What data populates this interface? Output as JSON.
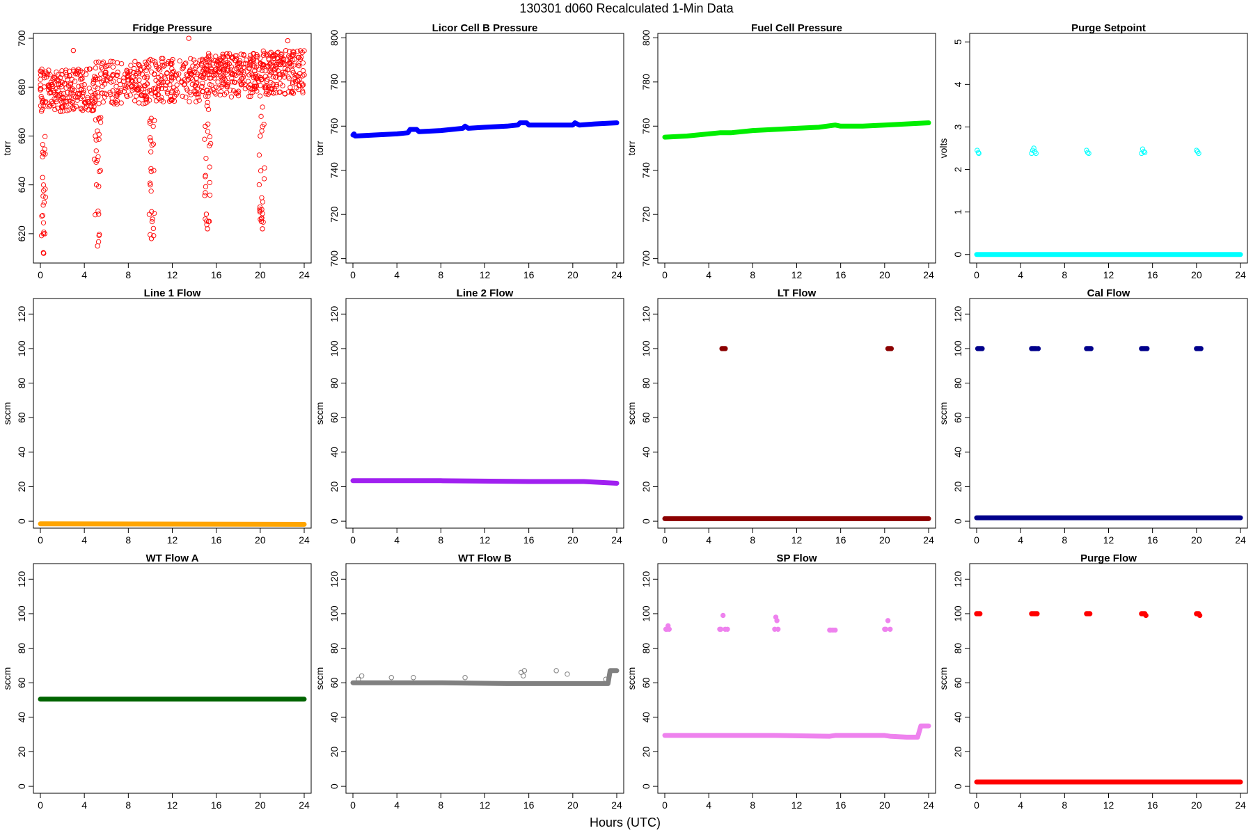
{
  "figure": {
    "title": "130301   d060   Recalculated 1-Min Data",
    "xlabel": "Hours (UTC)"
  },
  "chart_data": [
    {
      "type": "scatter",
      "title": "Fridge Pressure",
      "ylabel": "torr",
      "color": "#ff0000",
      "marker": "open-circle",
      "xlim": [
        0,
        24
      ],
      "xticks": [
        0,
        4,
        8,
        12,
        16,
        20,
        24
      ],
      "ylim": [
        608,
        702
      ],
      "yticks": [
        620,
        640,
        660,
        680,
        700
      ],
      "pattern": "noisy baseline around 678-686 torr with dips to ~612-625 torr near hours 0, 5, 10, 15, 20",
      "series": [
        {
          "x": [
            0.2,
            0.3,
            0.4,
            1,
            2,
            3,
            4,
            5,
            5.1,
            5.2,
            5.3,
            6,
            7,
            8,
            9,
            10,
            10.1,
            10.2,
            11,
            12,
            13,
            13.5,
            14,
            15,
            15.1,
            15.2,
            15.3,
            16,
            17,
            18,
            19,
            20,
            20.1,
            20.2,
            21,
            22,
            22.5,
            23,
            24
          ],
          "y": [
            643,
            612,
            620,
            681,
            682,
            695,
            681,
            660,
            640,
            615,
            628,
            683,
            690,
            683,
            681,
            640,
            618,
            626,
            682,
            686,
            688,
            700,
            686,
            664,
            628,
            622,
            625,
            685,
            687,
            686,
            685,
            660,
            625,
            622,
            686,
            685,
            699,
            686,
            685
          ]
        }
      ]
    },
    {
      "type": "scatter",
      "title": "Licor Cell B Pressure",
      "ylabel": "torr",
      "color": "#0000ff",
      "marker": "filled-band",
      "xlim": [
        0,
        24
      ],
      "xticks": [
        0,
        4,
        8,
        12,
        16,
        20,
        24
      ],
      "ylim": [
        698,
        802
      ],
      "yticks": [
        700,
        720,
        740,
        760,
        780,
        800
      ],
      "series": [
        {
          "x": [
            0,
            0.1,
            0.2,
            2,
            4,
            5,
            5.2,
            5.8,
            6,
            8,
            10,
            10.2,
            10.5,
            12,
            14,
            15,
            15.2,
            15.8,
            16,
            18,
            20,
            20.2,
            20.6,
            22,
            24
          ],
          "y": [
            756,
            756.5,
            755.5,
            756,
            756.5,
            757,
            758.5,
            758.5,
            757.5,
            758,
            759,
            760,
            759,
            759.5,
            760,
            760.5,
            761.5,
            761.5,
            760.5,
            760.5,
            760.5,
            761.5,
            760.5,
            761,
            761.5
          ]
        }
      ]
    },
    {
      "type": "scatter",
      "title": "Fuel Cell Pressure",
      "ylabel": "torr",
      "color": "#00ee00",
      "marker": "filled-band",
      "xlim": [
        0,
        24
      ],
      "xticks": [
        0,
        4,
        8,
        12,
        16,
        20,
        24
      ],
      "ylim": [
        698,
        802
      ],
      "yticks": [
        700,
        720,
        740,
        760,
        780,
        800
      ],
      "series": [
        {
          "x": [
            0,
            2,
            4,
            5,
            6,
            8,
            10,
            12,
            14,
            15.5,
            16,
            18,
            20,
            22,
            24
          ],
          "y": [
            755,
            755.5,
            756.5,
            757,
            757,
            758,
            758.5,
            759,
            759.5,
            760.5,
            760,
            760,
            760.5,
            761,
            761.5
          ]
        }
      ]
    },
    {
      "type": "scatter",
      "title": "Purge Setpoint",
      "ylabel": "volts",
      "color": "#00ffff",
      "marker": "open-circle",
      "xlim": [
        0,
        24
      ],
      "xticks": [
        0,
        4,
        8,
        12,
        16,
        20,
        24
      ],
      "ylim": [
        -0.2,
        5.2
      ],
      "yticks": [
        0,
        1,
        2,
        3,
        4,
        5
      ],
      "baseline": 0,
      "spikes": [
        {
          "x": [
            0.05,
            0.15,
            0.2
          ],
          "y": [
            2.45,
            2.4,
            2.38
          ]
        },
        {
          "x": [
            5.0,
            5.1,
            5.2,
            5.3,
            5.4
          ],
          "y": [
            2.38,
            2.45,
            2.5,
            2.42,
            2.38
          ]
        },
        {
          "x": [
            10.0,
            10.1,
            10.2
          ],
          "y": [
            2.45,
            2.4,
            2.38
          ]
        },
        {
          "x": [
            15.0,
            15.1,
            15.2,
            15.3
          ],
          "y": [
            2.38,
            2.48,
            2.42,
            2.4
          ]
        },
        {
          "x": [
            20.0,
            20.1,
            20.2
          ],
          "y": [
            2.45,
            2.42,
            2.38
          ]
        }
      ]
    },
    {
      "type": "scatter",
      "title": "Line 1 Flow",
      "ylabel": "sccm",
      "color": "#ffa500",
      "marker": "filled-band",
      "xlim": [
        0,
        24
      ],
      "xticks": [
        0,
        4,
        8,
        12,
        16,
        20,
        24
      ],
      "ylim": [
        -4,
        129
      ],
      "yticks": [
        0,
        20,
        40,
        60,
        80,
        100,
        120
      ],
      "series": [
        {
          "x": [
            0,
            24
          ],
          "y": [
            -1.5,
            -1.8
          ]
        }
      ]
    },
    {
      "type": "scatter",
      "title": "Line 2 Flow",
      "ylabel": "sccm",
      "color": "#a020f0",
      "marker": "filled-band",
      "xlim": [
        0,
        24
      ],
      "xticks": [
        0,
        4,
        8,
        12,
        16,
        20,
        24
      ],
      "ylim": [
        -4,
        129
      ],
      "yticks": [
        0,
        20,
        40,
        60,
        80,
        100,
        120
      ],
      "series": [
        {
          "x": [
            0,
            8,
            16,
            21,
            24
          ],
          "y": [
            23.5,
            23.5,
            23,
            23,
            22
          ]
        }
      ]
    },
    {
      "type": "scatter",
      "title": "LT Flow",
      "ylabel": "sccm",
      "color": "#8b0000",
      "marker": "filled-band",
      "xlim": [
        0,
        24
      ],
      "xticks": [
        0,
        4,
        8,
        12,
        16,
        20,
        24
      ],
      "ylim": [
        -4,
        129
      ],
      "yticks": [
        0,
        20,
        40,
        60,
        80,
        100,
        120
      ],
      "baseline": 1.5,
      "spikes": [
        {
          "x": [
            5.2,
            5.3,
            5.4,
            5.5
          ],
          "y": [
            100,
            100,
            100,
            100
          ]
        },
        {
          "x": [
            20.3,
            20.4,
            20.5,
            20.6
          ],
          "y": [
            100,
            100,
            100,
            100
          ]
        }
      ]
    },
    {
      "type": "scatter",
      "title": "Cal Flow",
      "ylabel": "sccm",
      "color": "#00008b",
      "marker": "filled-band",
      "xlim": [
        0,
        24
      ],
      "xticks": [
        0,
        4,
        8,
        12,
        16,
        20,
        24
      ],
      "ylim": [
        -4,
        129
      ],
      "yticks": [
        0,
        20,
        40,
        60,
        80,
        100,
        120
      ],
      "baseline": 2,
      "spikes": [
        {
          "x": [
            0.1,
            0.2,
            0.3,
            0.4,
            0.5
          ],
          "y": [
            100,
            100,
            100,
            100,
            100
          ]
        },
        {
          "x": [
            5.0,
            5.1,
            5.2,
            5.3,
            5.4,
            5.6
          ],
          "y": [
            100,
            100,
            100,
            100,
            100,
            100
          ]
        },
        {
          "x": [
            10.0,
            10.1,
            10.2,
            10.3,
            10.4
          ],
          "y": [
            100,
            100,
            100,
            100,
            100
          ]
        },
        {
          "x": [
            15.0,
            15.1,
            15.2,
            15.3,
            15.4,
            15.5
          ],
          "y": [
            100,
            100,
            100,
            100,
            100,
            100
          ]
        },
        {
          "x": [
            20.0,
            20.1,
            20.2,
            20.3,
            20.4
          ],
          "y": [
            100,
            100,
            100,
            100,
            100
          ]
        }
      ]
    },
    {
      "type": "scatter",
      "title": "WT Flow A",
      "ylabel": "sccm",
      "color": "#006400",
      "marker": "filled-band",
      "xlim": [
        0,
        24
      ],
      "xticks": [
        0,
        4,
        8,
        12,
        16,
        20,
        24
      ],
      "ylim": [
        -4,
        129
      ],
      "yticks": [
        0,
        20,
        40,
        60,
        80,
        100,
        120
      ],
      "series": [
        {
          "x": [
            0,
            24
          ],
          "y": [
            50.5,
            50.5
          ]
        }
      ]
    },
    {
      "type": "scatter",
      "title": "WT Flow B",
      "ylabel": "sccm",
      "color": "#808080",
      "marker": "filled-band",
      "xlim": [
        0,
        24
      ],
      "xticks": [
        0,
        4,
        8,
        12,
        16,
        20,
        24
      ],
      "ylim": [
        -4,
        129
      ],
      "yticks": [
        0,
        20,
        40,
        60,
        80,
        100,
        120
      ],
      "series": [
        {
          "x": [
            0,
            8,
            14,
            16,
            20,
            23.2,
            23.4,
            24
          ],
          "y": [
            60,
            60,
            59.5,
            59.5,
            59.5,
            59.5,
            67,
            67
          ]
        }
      ],
      "outliers": {
        "x": [
          0.5,
          0.8,
          3.5,
          5.5,
          10.2,
          15.3,
          15.5,
          15.6,
          18.5,
          19.5,
          23.0
        ],
        "y": [
          62,
          64,
          63,
          63,
          63,
          66,
          64,
          67,
          67,
          65,
          62
        ]
      }
    },
    {
      "type": "scatter",
      "title": "SP Flow",
      "ylabel": "sccm",
      "color": "#ee82ee",
      "marker": "filled-band",
      "xlim": [
        0,
        24
      ],
      "xticks": [
        0,
        4,
        8,
        12,
        16,
        20,
        24
      ],
      "ylim": [
        -4,
        129
      ],
      "yticks": [
        0,
        20,
        40,
        60,
        80,
        100,
        120
      ],
      "series": [
        {
          "x": [
            0,
            5,
            5.5,
            10,
            15,
            15.5,
            20,
            20.5,
            22,
            22.5,
            23,
            23.3,
            24
          ],
          "y": [
            29.5,
            29.5,
            29.5,
            29.5,
            29,
            29.5,
            29.5,
            29,
            28.5,
            28.5,
            28.5,
            35,
            35
          ]
        }
      ],
      "spikes": [
        {
          "x": [
            0.1,
            0.2,
            0.3,
            0.4
          ],
          "y": [
            91,
            91,
            93,
            91
          ]
        },
        {
          "x": [
            5.0,
            5.1,
            5.3,
            5.5,
            5.7
          ],
          "y": [
            91,
            91,
            99,
            91,
            91
          ]
        },
        {
          "x": [
            10.0,
            10.1,
            10.2,
            10.3
          ],
          "y": [
            91,
            98,
            96,
            91
          ]
        },
        {
          "x": [
            15.0,
            15.1,
            15.3,
            15.5
          ],
          "y": [
            90.5,
            90.5,
            90.5,
            90.5
          ]
        },
        {
          "x": [
            20.0,
            20.1,
            20.3,
            20.5
          ],
          "y": [
            91,
            91,
            96,
            91
          ]
        }
      ]
    },
    {
      "type": "scatter",
      "title": "Purge Flow",
      "ylabel": "sccm",
      "color": "#ff0000",
      "marker": "filled-band",
      "xlim": [
        0,
        24
      ],
      "xticks": [
        0,
        4,
        8,
        12,
        16,
        20,
        24
      ],
      "ylim": [
        -4,
        129
      ],
      "yticks": [
        0,
        20,
        40,
        60,
        80,
        100,
        120
      ],
      "baseline": 2.5,
      "spikes": [
        {
          "x": [
            0.0,
            0.1,
            0.2,
            0.3
          ],
          "y": [
            100,
            100,
            100,
            100
          ]
        },
        {
          "x": [
            5.0,
            5.1,
            5.2,
            5.3,
            5.4,
            5.5
          ],
          "y": [
            100,
            100,
            100,
            100,
            100,
            100
          ]
        },
        {
          "x": [
            10.0,
            10.1,
            10.2,
            10.3
          ],
          "y": [
            100,
            100,
            100,
            100
          ]
        },
        {
          "x": [
            15.0,
            15.1,
            15.2,
            15.3,
            15.4
          ],
          "y": [
            100,
            100,
            100,
            100,
            99
          ]
        },
        {
          "x": [
            20.0,
            20.1,
            20.2,
            20.3
          ],
          "y": [
            100,
            100,
            100,
            99
          ]
        }
      ]
    }
  ]
}
